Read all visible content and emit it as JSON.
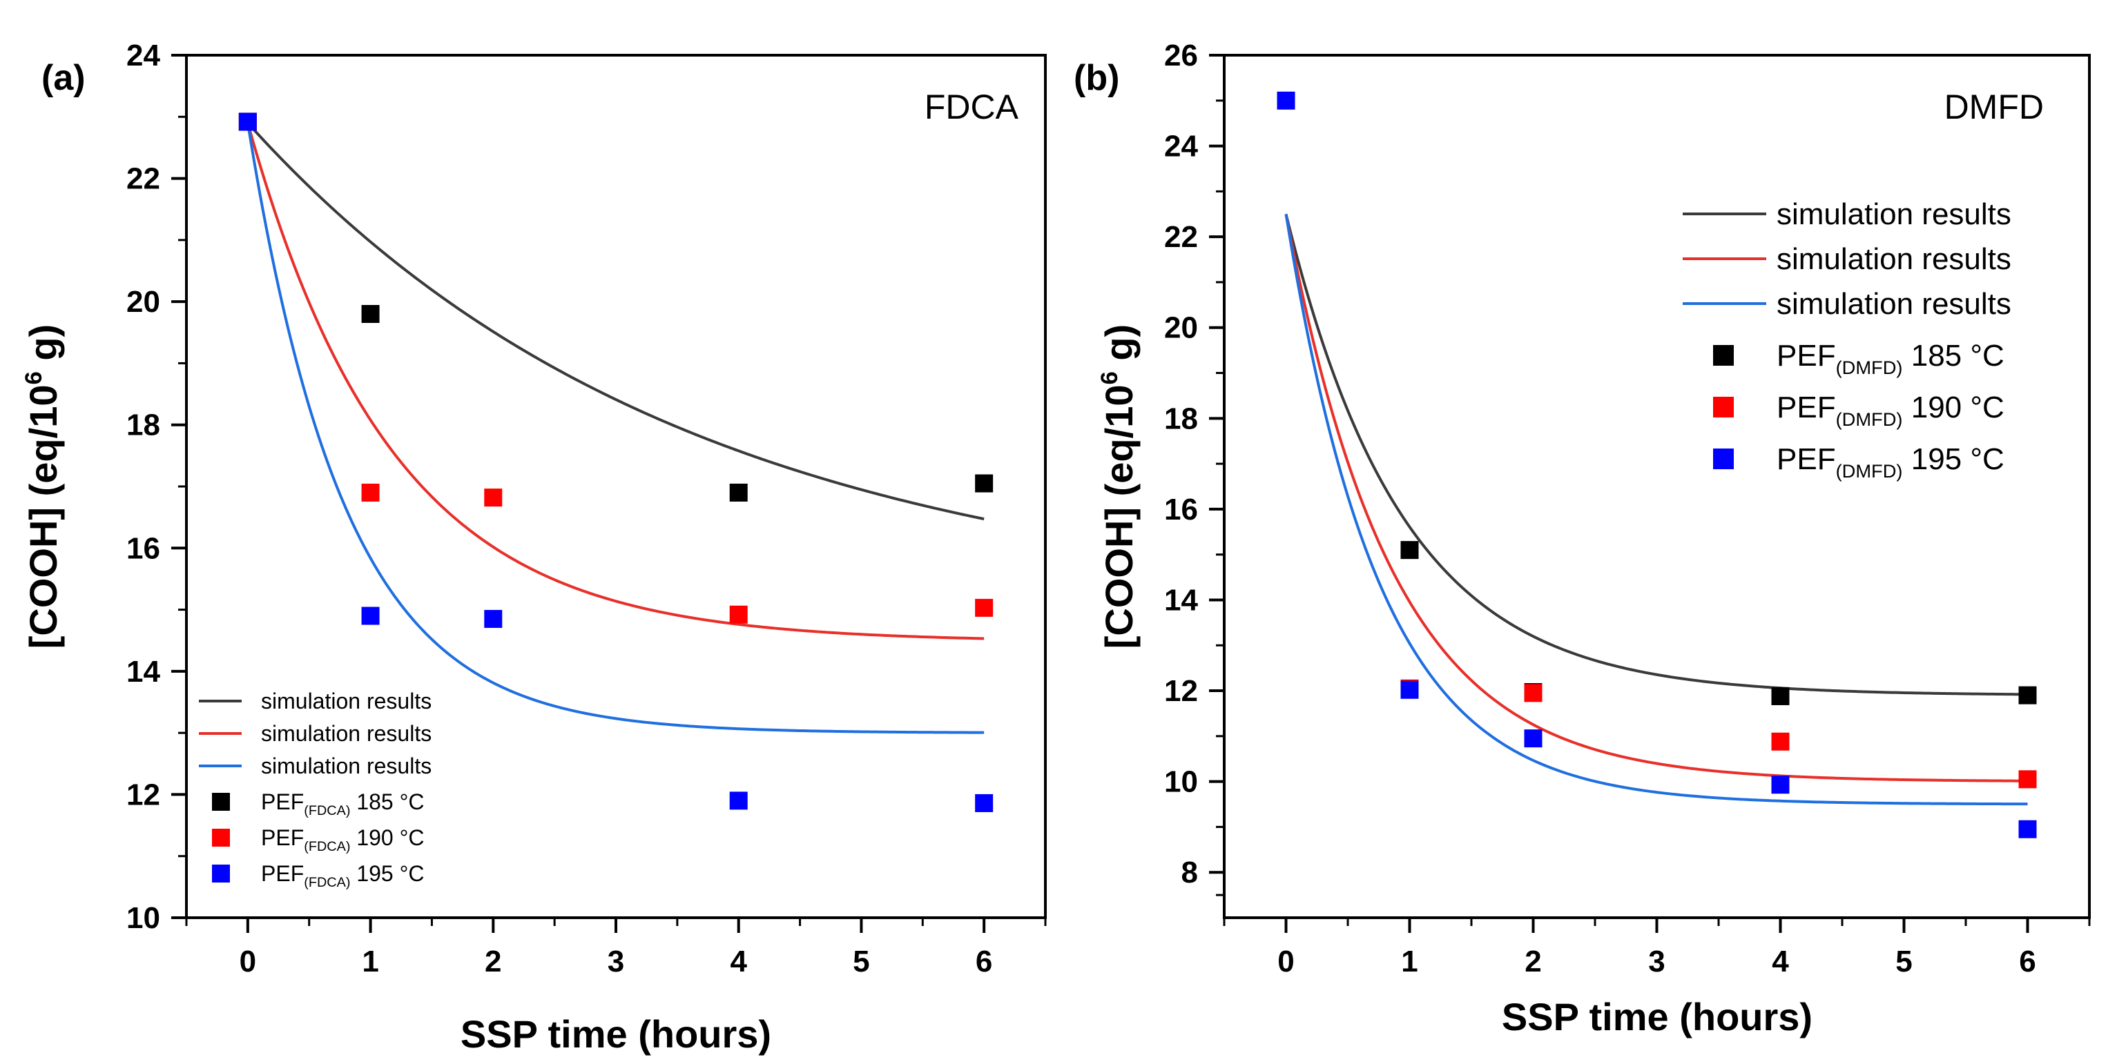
{
  "chart_data": [
    {
      "type": "scatter",
      "panel_label": "(a)",
      "title": "FDCA",
      "xlabel": "SSP time (hours)",
      "ylabel_parts": {
        "main": "[COOH] (eq/10",
        "sup": "6",
        "end": " g)"
      },
      "xlim": [
        -0.5,
        6.5
      ],
      "ylim": [
        10,
        24
      ],
      "xticks": [
        0,
        1,
        2,
        3,
        4,
        5,
        6
      ],
      "yticks": [
        10,
        12,
        14,
        16,
        18,
        20,
        22,
        24
      ],
      "legend_location": "lower-left",
      "lines": [
        {
          "name": "simulation results",
          "color": "#3a3a3a",
          "y0": 22.9,
          "y_inf": 15.0,
          "k": 0.28,
          "x_end": 6
        },
        {
          "name": "simulation results",
          "color": "#e8302a",
          "y0": 22.9,
          "y_inf": 14.48,
          "k": 0.85,
          "x_end": 6
        },
        {
          "name": "simulation results",
          "color": "#1f6fe0",
          "y0": 22.9,
          "y_inf": 13.0,
          "k": 1.25,
          "x_end": 6
        }
      ],
      "series": [
        {
          "name": "PEF",
          "subscript": "(FDCA)",
          "suffix": " 185 °C",
          "color": "#000000",
          "points": [
            [
              0,
              22.92
            ],
            [
              1,
              19.8
            ],
            [
              4,
              16.9
            ],
            [
              6,
              17.05
            ]
          ]
        },
        {
          "name": "PEF",
          "subscript": "(FDCA)",
          "suffix": " 190 °C",
          "color": "#ff0000",
          "points": [
            [
              0,
              22.92
            ],
            [
              1,
              16.9
            ],
            [
              2,
              16.82
            ],
            [
              4,
              14.92
            ],
            [
              6,
              15.03
            ]
          ]
        },
        {
          "name": "PEF",
          "subscript": "(FDCA)",
          "suffix": " 195 °C",
          "color": "#0000ff",
          "points": [
            [
              0,
              22.92
            ],
            [
              1,
              14.9
            ],
            [
              2,
              14.85
            ],
            [
              4,
              11.9
            ],
            [
              6,
              11.86
            ]
          ]
        }
      ]
    },
    {
      "type": "scatter",
      "panel_label": "(b)",
      "title": "DMFD",
      "xlabel": "SSP time (hours)",
      "ylabel_parts": {
        "main": "[COOH] (eq/10",
        "sup": "6",
        "end": " g)"
      },
      "xlim": [
        -0.5,
        6.5
      ],
      "ylim": [
        7,
        26
      ],
      "xticks": [
        0,
        1,
        2,
        3,
        4,
        5,
        6
      ],
      "yticks": [
        8,
        10,
        12,
        14,
        16,
        18,
        20,
        22,
        24,
        26
      ],
      "legend_location": "upper-right",
      "lines": [
        {
          "name": "simulation results",
          "color": "#3a3a3a",
          "y0": 22.5,
          "y_inf": 11.9,
          "k": 1.05,
          "x_end": 6
        },
        {
          "name": "simulation results",
          "color": "#e8302a",
          "y0": 22.5,
          "y_inf": 10.0,
          "k": 1.15,
          "x_end": 6
        },
        {
          "name": "simulation results",
          "color": "#1f6fe0",
          "y0": 22.5,
          "y_inf": 9.5,
          "k": 1.3,
          "x_end": 6
        }
      ],
      "series": [
        {
          "name": "PEF",
          "subscript": "(DMFD)",
          "suffix": " 185 °C",
          "color": "#000000",
          "points": [
            [
              1,
              15.1
            ],
            [
              2,
              11.97
            ],
            [
              4,
              11.88
            ],
            [
              6,
              11.9
            ]
          ]
        },
        {
          "name": "PEF",
          "subscript": "(DMFD)",
          "suffix": " 190 °C",
          "color": "#ff0000",
          "points": [
            [
              1,
              12.05
            ],
            [
              2,
              11.95
            ],
            [
              4,
              10.88
            ],
            [
              6,
              10.05
            ]
          ]
        },
        {
          "name": "PEF",
          "subscript": "(DMFD)",
          "suffix": " 195 °C",
          "color": "#0000ff",
          "points": [
            [
              0,
              25.0
            ],
            [
              1,
              12.02
            ],
            [
              2,
              10.95
            ],
            [
              4,
              9.93
            ],
            [
              6,
              8.95
            ]
          ]
        }
      ]
    }
  ]
}
